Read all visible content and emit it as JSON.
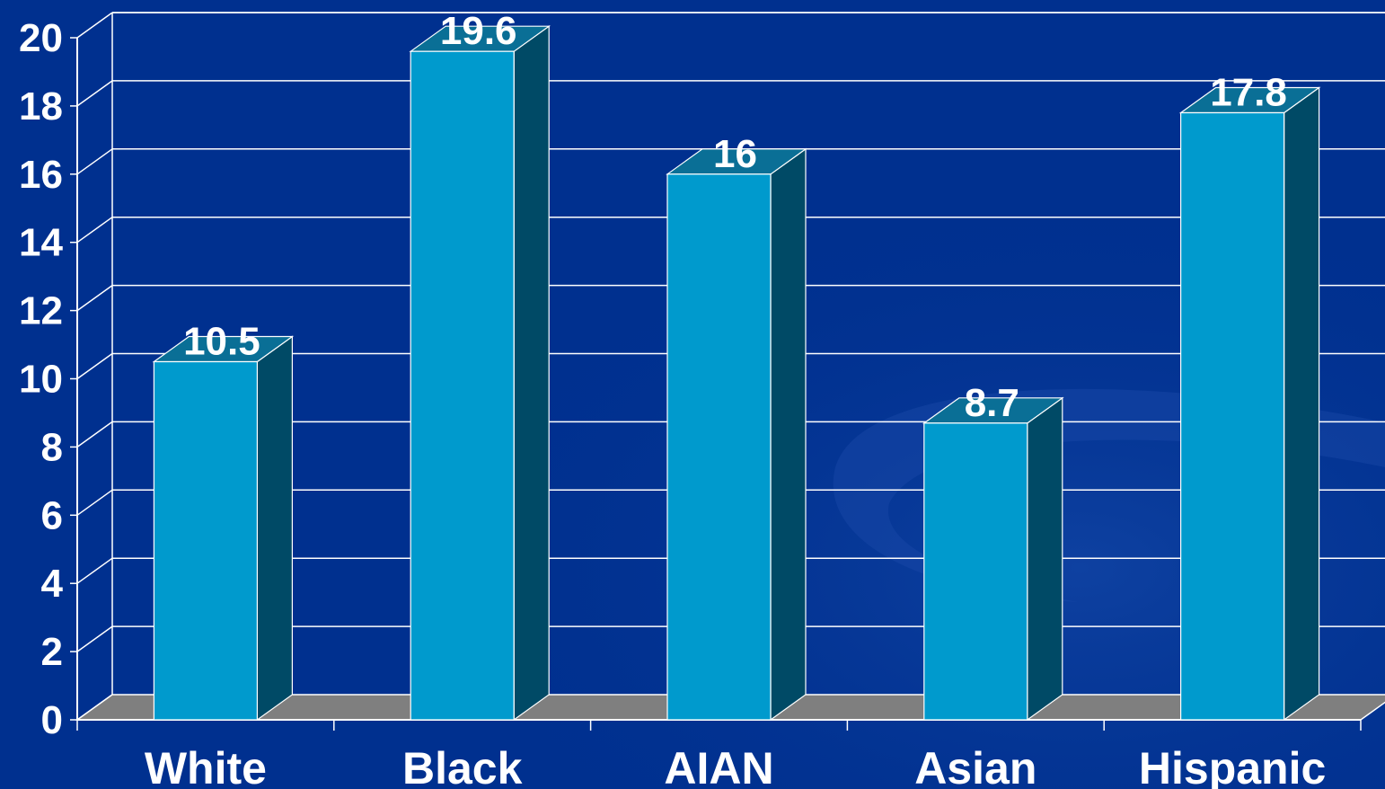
{
  "chart_data": {
    "type": "bar",
    "title": "",
    "xlabel": "",
    "ylabel": "",
    "categories": [
      "White",
      "Black",
      "AIAN",
      "Asian",
      "Hispanic"
    ],
    "values": [
      10.5,
      19.6,
      16,
      8.7,
      17.8
    ],
    "data_labels": [
      "10.5",
      "19.6",
      "16",
      "8.7",
      "17.8"
    ],
    "ylim": [
      0,
      20
    ],
    "yticks": [
      0,
      2,
      4,
      6,
      8,
      10,
      12,
      14,
      16,
      18,
      20
    ],
    "ytick_labels": [
      "0",
      "2",
      "4",
      "6",
      "8",
      "10",
      "12",
      "14",
      "16",
      "18",
      "20"
    ],
    "grid": true,
    "style": "3d-column"
  },
  "colors": {
    "background": "#00308f",
    "bar_front": "#009acd",
    "bar_side": "#004a66",
    "bar_top": "#0a6f96",
    "floor": "#7f7f7f",
    "grid": "#ffffff",
    "text": "#ffffff"
  }
}
